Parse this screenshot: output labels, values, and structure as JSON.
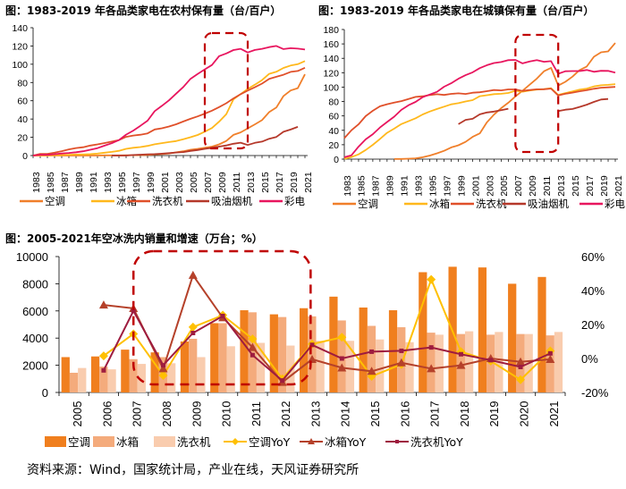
{
  "source": "资料来源：Wind，国家统计局，产业在线，天风证券研究所",
  "chart_data": [
    {
      "type": "line",
      "title": "图：1983-2019 年各品类家电在农村保有量（台/百户）",
      "xlabel": "",
      "ylabel": "",
      "x": [
        1983,
        1984,
        1985,
        1986,
        1987,
        1988,
        1989,
        1990,
        1991,
        1992,
        1993,
        1994,
        1995,
        1996,
        1997,
        1998,
        1999,
        2000,
        2001,
        2002,
        2003,
        2004,
        2005,
        2006,
        2007,
        2008,
        2009,
        2010,
        2011,
        2012,
        2013,
        2014,
        2015,
        2016,
        2017,
        2018,
        2019,
        2020,
        2021
      ],
      "xticks": [
        "1983",
        "1985",
        "1987",
        "1989",
        "1991",
        "1993",
        "1995",
        "1997",
        "1999",
        "2001",
        "2003",
        "2005",
        "2007",
        "2009",
        "2011",
        "2013",
        "2015",
        "2017",
        "2019",
        "2021"
      ],
      "ylim": [
        0,
        140
      ],
      "yticks": [
        0,
        20,
        40,
        60,
        80,
        100,
        120,
        140
      ],
      "highlight": [
        2007,
        2013
      ],
      "series": [
        {
          "name": "空调",
          "color": "#F07F2A",
          "values": [
            0,
            0,
            0,
            0,
            0,
            0,
            0,
            0,
            0,
            0,
            0.2,
            0.2,
            0.2,
            0.3,
            0.4,
            0.5,
            0.7,
            1.3,
            1.7,
            2.3,
            3.5,
            4.7,
            6.4,
            7.3,
            8.5,
            9.8,
            12.2,
            16,
            22.6,
            25.4,
            29.8,
            34.2,
            38.8,
            47.6,
            52.6,
            65.2,
            71.3,
            73.8,
            89
          ]
        },
        {
          "name": "冰箱",
          "color": "#FFB81C",
          "values": [
            0,
            0,
            0.1,
            0.4,
            0.6,
            0.9,
            1.2,
            1.2,
            1.6,
            2.2,
            3.1,
            4,
            5.2,
            7.3,
            8.5,
            9.3,
            10.6,
            12.3,
            13.6,
            14.8,
            15.9,
            17.8,
            20.1,
            22.5,
            26.1,
            30.2,
            37.1,
            45.2,
            61.5,
            67.3,
            72.9,
            77.6,
            82.6,
            89.5,
            91.7,
            95.9,
            98.6,
            100.1,
            103.5
          ]
        },
        {
          "name": "洗衣机",
          "color": "#E0502A",
          "values": [
            0,
            1.9,
            1.9,
            3.2,
            4.8,
            6.8,
            8.2,
            9.1,
            11,
            12.2,
            13.7,
            15.3,
            16.9,
            20.5,
            21.9,
            22.8,
            24.3,
            28.6,
            29.9,
            31.8,
            34.3,
            37.3,
            40.2,
            42.9,
            45.9,
            49.1,
            53.1,
            57.3,
            62.6,
            67.2,
            71.2,
            74.8,
            78.8,
            84,
            86.3,
            88.5,
            91.6,
            92.6,
            96.1
          ]
        },
        {
          "name": "吸油烟机",
          "color": "#B5382A",
          "values": [
            null,
            null,
            null,
            null,
            null,
            null,
            null,
            null,
            null,
            null,
            null,
            0,
            0,
            0,
            0.6,
            1,
            1.4,
            1.6,
            2.1,
            2.6,
            3.3,
            3.8,
            5.1,
            6.1,
            7.3,
            8.5,
            9.8,
            11.1,
            12.9,
            14.1,
            11.6,
            13.9,
            15.3,
            18.4,
            20.4,
            26,
            28.5,
            31.4,
            null
          ]
        },
        {
          "name": "彩电",
          "color": "#E8155E",
          "values": [
            0,
            0.8,
            0.8,
            1.5,
            2.3,
            2.8,
            3.6,
            4.7,
            6.4,
            8.1,
            10.9,
            13.5,
            16.9,
            22.9,
            27.3,
            32.6,
            38.2,
            48.7,
            54.4,
            60.5,
            67.8,
            75.1,
            84,
            89.4,
            94.4,
            99.2,
            108.9,
            111.8,
            115.5,
            116.9,
            112.9,
            115.6,
            116.9,
            118.8,
            120,
            116.6,
            117.6,
            117.1,
            116.1
          ]
        }
      ],
      "legend": "bottom"
    },
    {
      "type": "line",
      "title": "图：1983-2019 年各品类家电在城镇保有量（台/百户）",
      "xlabel": "",
      "ylabel": "",
      "x": [
        1983,
        1984,
        1985,
        1986,
        1987,
        1988,
        1989,
        1990,
        1991,
        1992,
        1993,
        1994,
        1995,
        1996,
        1997,
        1998,
        1999,
        2000,
        2001,
        2002,
        2003,
        2004,
        2005,
        2006,
        2007,
        2008,
        2009,
        2010,
        2011,
        2012,
        2013,
        2014,
        2015,
        2016,
        2017,
        2018,
        2019,
        2020,
        2021
      ],
      "xticks": [
        "1983",
        "1985",
        "1987",
        "1989",
        "1991",
        "1993",
        "1995",
        "1997",
        "1999",
        "2001",
        "2003",
        "2005",
        "2007",
        "2009",
        "2011",
        "2013",
        "2015",
        "2017",
        "2019",
        "2021"
      ],
      "ylim": [
        0,
        180
      ],
      "yticks": [
        0,
        20,
        40,
        60,
        80,
        100,
        120,
        140,
        160,
        180
      ],
      "highlight": [
        2007,
        2013
      ],
      "series": [
        {
          "name": "空调",
          "color": "#F07F2A",
          "values": [
            null,
            null,
            null,
            null,
            null,
            null,
            null,
            0.3,
            0.3,
            0.6,
            1.1,
            2.6,
            5,
            8.1,
            11.6,
            16.3,
            19.2,
            24,
            30.9,
            35.8,
            51.2,
            61.8,
            70.8,
            78.3,
            87.1,
            95,
            103.4,
            111.8,
            122,
            126.8,
            102.2,
            107.4,
            114.6,
            123.7,
            128.6,
            142.2,
            148.3,
            149.6,
            161.3
          ]
        },
        {
          "name": "冰箱",
          "color": "#FFB81C",
          "values": [
            0.5,
            2.8,
            6.6,
            12.7,
            19.9,
            28.1,
            36.5,
            42.3,
            48.7,
            52.6,
            56.7,
            62.1,
            66.2,
            69.7,
            72.9,
            76.1,
            77.7,
            80.1,
            81.9,
            87.4,
            88.7,
            90.2,
            90.7,
            91.8,
            95,
            93.6,
            95.4,
            96.6,
            97.2,
            98.5,
            89.2,
            91.7,
            94,
            96.4,
            98,
            100.9,
            102.5,
            103.1,
            104.2
          ]
        },
        {
          "name": "洗衣机",
          "color": "#E0502A",
          "values": [
            29,
            40.1,
            48.3,
            59.7,
            67.1,
            73.4,
            76.2,
            78.4,
            80.6,
            83.4,
            86.4,
            87.3,
            89,
            90.1,
            89.1,
            90.6,
            91.4,
            90.5,
            92.2,
            92.9,
            94.4,
            95.9,
            95.5,
            96.8,
            96.8,
            94.7,
            96,
            96.9,
            97.1,
            98,
            88.4,
            90.7,
            92.3,
            94.2,
            95.7,
            97.7,
            99.2,
            99.7,
            100.3
          ]
        },
        {
          "name": "吸油烟机",
          "color": "#B5382A",
          "values": [
            null,
            null,
            null,
            null,
            null,
            null,
            null,
            null,
            null,
            null,
            null,
            null,
            null,
            null,
            null,
            null,
            48.5,
            54.5,
            56,
            62.2,
            64.8,
            66.1,
            67.9,
            70,
            null,
            null,
            null,
            null,
            null,
            null,
            66.7,
            68.6,
            69.6,
            72.5,
            75.6,
            79.5,
            82.8,
            83.5,
            null
          ]
        },
        {
          "name": "彩电",
          "color": "#E8155E",
          "values": [
            2.6,
            5.4,
            17.2,
            27.4,
            34.6,
            43.9,
            51.5,
            59,
            68.4,
            74.9,
            79.5,
            86.2,
            89.8,
            93.5,
            100.5,
            105.4,
            111.6,
            116.6,
            120.5,
            126.4,
            130.5,
            133.4,
            134.8,
            137.4,
            137.8,
            132.9,
            135.7,
            137.4,
            135.2,
            136.1,
            118.6,
            122,
            122.3,
            122.3,
            123.8,
            121.3,
            122.6,
            122.5,
            120.1
          ]
        }
      ],
      "legend": "bottom"
    },
    {
      "type": "bar",
      "title": "图：2005-2021年空冰洗内销量和增速（万台；%）",
      "xlabel": "",
      "ylabel": "",
      "categories": [
        "2005",
        "2006",
        "2007",
        "2008",
        "2009",
        "2010",
        "2011",
        "2012",
        "2013",
        "2014",
        "2015",
        "2016",
        "2017",
        "2018",
        "2019",
        "2020",
        "2021"
      ],
      "ylim": [
        0,
        10000
      ],
      "yticks": [
        0,
        2000,
        4000,
        6000,
        8000,
        10000
      ],
      "y2lim": [
        -20,
        60
      ],
      "y2ticks": [
        "-20%",
        "0%",
        "20%",
        "40%",
        "60%"
      ],
      "y2tick_values": [
        -20,
        0,
        20,
        40,
        60
      ],
      "highlight": [
        "2007",
        "2012"
      ],
      "bars": [
        {
          "name": "空调",
          "color": "#F07F1E",
          "values": [
            2600,
            2650,
            3150,
            2950,
            3750,
            5100,
            6050,
            5750,
            6200,
            7050,
            6250,
            6050,
            8850,
            9250,
            9200,
            8000,
            8500
          ]
        },
        {
          "name": "冰箱",
          "color": "#F4AB7C",
          "values": [
            1450,
            1900,
            2450,
            2600,
            3950,
            5100,
            5900,
            5550,
            5600,
            5300,
            4900,
            4800,
            4400,
            4300,
            4250,
            4300,
            4200
          ]
        },
        {
          "name": "洗衣机",
          "color": "#F9CCAE",
          "values": [
            1800,
            1700,
            2100,
            2150,
            2600,
            3400,
            3650,
            3450,
            3800,
            3800,
            3900,
            3700,
            4250,
            4500,
            4450,
            4300,
            4450
          ]
        }
      ],
      "lines": [
        {
          "name": "空调YoY",
          "color": "#FFC000",
          "marker": "diamond",
          "values": [
            null,
            1.5,
            14.5,
            -10,
            18.5,
            25.5,
            11.5,
            -12,
            8.5,
            12.5,
            -10.5,
            -3.5,
            46.5,
            4,
            -1.5,
            -12.5,
            4.5
          ]
        },
        {
          "name": "冰箱YoY",
          "color": "#B5412A",
          "marker": "triangle",
          "values": [
            null,
            31.5,
            29.5,
            -6,
            49,
            24,
            6.5,
            -14,
            -0.5,
            -5.5,
            -7.5,
            -2.5,
            -6,
            -4,
            0,
            -2,
            -0.5
          ]
        },
        {
          "name": "洗衣机YoY",
          "color": "#9E1C3F",
          "marker": "square",
          "values": [
            null,
            -7,
            28,
            -4,
            15,
            25,
            2,
            -13,
            8,
            0,
            4,
            4.5,
            6.5,
            2.5,
            -1,
            -5,
            3
          ]
        }
      ],
      "legend": "bottom"
    }
  ]
}
